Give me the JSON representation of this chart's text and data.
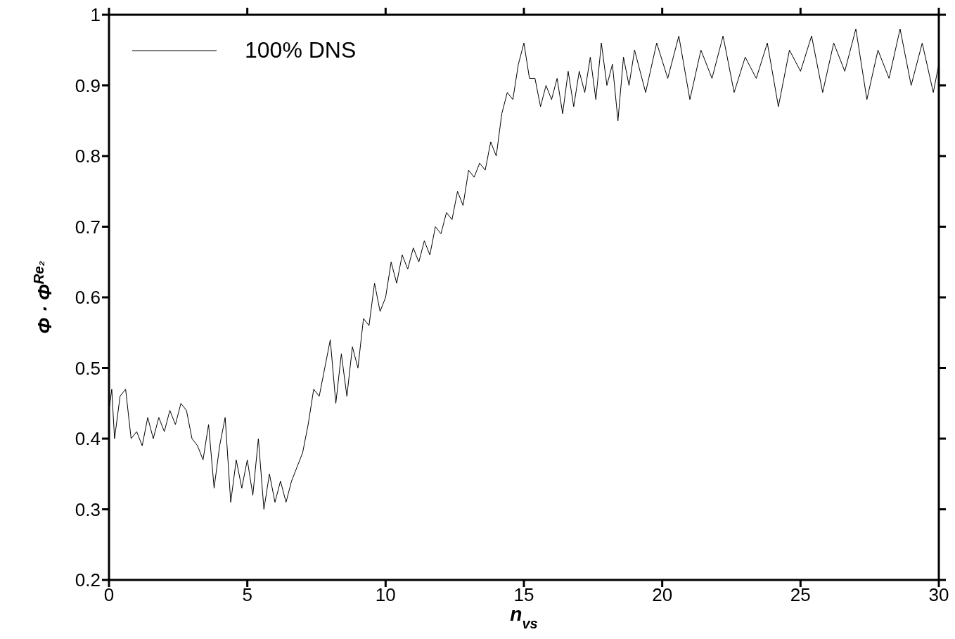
{
  "chart_data": {
    "type": "line",
    "xlabel": "n$_{vs}$",
    "ylabel": "Φ · Φ$^{Re₂}$",
    "xlim": [
      0,
      30
    ],
    "xticks": [
      0,
      5,
      10,
      15,
      20,
      25,
      30
    ],
    "ylim": [
      0.2,
      1
    ],
    "yticks": [
      0.2,
      0.3,
      0.4,
      0.5,
      0.6,
      0.7,
      0.8,
      0.9,
      1
    ],
    "legend": "top left",
    "grid": false,
    "x": [
      0,
      0.1,
      0.2,
      0.4,
      0.6,
      0.8,
      1,
      1.2,
      1.4,
      1.6,
      1.8,
      2,
      2.2,
      2.4,
      2.6,
      2.8,
      3,
      3.2,
      3.4,
      3.6,
      3.8,
      4,
      4.2,
      4.4,
      4.6,
      4.8,
      5,
      5.2,
      5.4,
      5.6,
      5.8,
      6,
      6.2,
      6.4,
      6.6,
      6.8,
      7,
      7.2,
      7.4,
      7.6,
      7.8,
      8,
      8.2,
      8.4,
      8.6,
      8.8,
      9,
      9.2,
      9.4,
      9.6,
      9.8,
      10,
      10.2,
      10.4,
      10.6,
      10.8,
      11,
      11.2,
      11.4,
      11.6,
      11.8,
      12,
      12.2,
      12.4,
      12.6,
      12.8,
      13,
      13.2,
      13.4,
      13.6,
      13.8,
      14,
      14.2,
      14.4,
      14.6,
      14.8,
      15,
      15.2,
      15.4,
      15.6,
      15.8,
      16,
      16.2,
      16.4,
      16.6,
      16.8,
      17,
      17.2,
      17.4,
      17.6,
      17.8,
      18,
      18.2,
      18.4,
      18.6,
      18.8,
      19,
      19.4,
      19.8,
      20.2,
      20.6,
      21,
      21.4,
      21.8,
      22.2,
      22.6,
      23,
      23.4,
      23.8,
      24.2,
      24.6,
      25,
      25.4,
      25.8,
      26.2,
      26.6,
      27,
      27.4,
      27.8,
      28.2,
      28.6,
      29,
      29.4,
      29.8,
      30
    ],
    "series": [
      {
        "name": "100% DNS",
        "color": "#000000",
        "values": [
          0.44,
          0.47,
          0.4,
          0.46,
          0.47,
          0.4,
          0.41,
          0.39,
          0.43,
          0.4,
          0.43,
          0.41,
          0.44,
          0.42,
          0.45,
          0.44,
          0.4,
          0.39,
          0.37,
          0.42,
          0.33,
          0.39,
          0.43,
          0.31,
          0.37,
          0.33,
          0.37,
          0.32,
          0.4,
          0.3,
          0.35,
          0.31,
          0.34,
          0.31,
          0.34,
          0.36,
          0.38,
          0.42,
          0.47,
          0.46,
          0.5,
          0.54,
          0.45,
          0.52,
          0.46,
          0.53,
          0.5,
          0.57,
          0.56,
          0.62,
          0.58,
          0.6,
          0.65,
          0.62,
          0.66,
          0.64,
          0.67,
          0.65,
          0.68,
          0.66,
          0.7,
          0.69,
          0.72,
          0.71,
          0.75,
          0.73,
          0.78,
          0.77,
          0.79,
          0.78,
          0.82,
          0.8,
          0.86,
          0.89,
          0.88,
          0.93,
          0.96,
          0.91,
          0.91,
          0.87,
          0.9,
          0.88,
          0.91,
          0.86,
          0.92,
          0.87,
          0.92,
          0.89,
          0.94,
          0.88,
          0.96,
          0.9,
          0.93,
          0.85,
          0.94,
          0.9,
          0.95,
          0.89,
          0.96,
          0.91,
          0.97,
          0.88,
          0.95,
          0.91,
          0.97,
          0.89,
          0.94,
          0.91,
          0.96,
          0.87,
          0.95,
          0.92,
          0.97,
          0.89,
          0.96,
          0.92,
          0.98,
          0.88,
          0.95,
          0.91,
          0.98,
          0.9,
          0.96,
          0.89,
          0.93
        ]
      }
    ]
  }
}
